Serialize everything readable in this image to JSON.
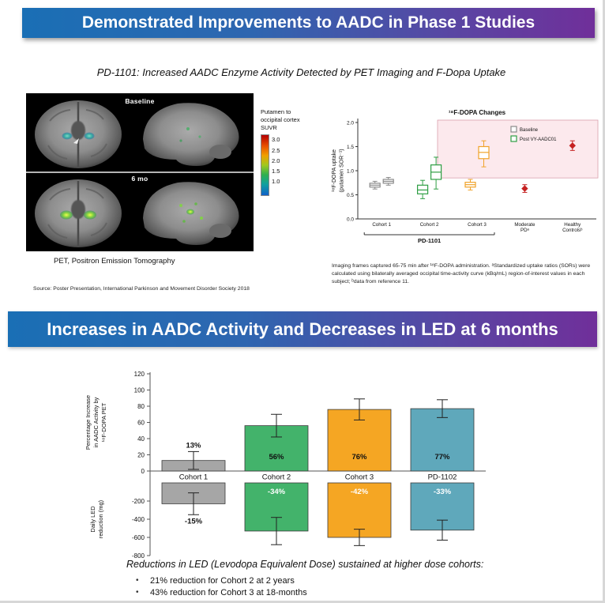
{
  "slide1": {
    "banner": "Demonstrated Improvements to AADC in Phase 1 Studies",
    "subtitle": "PD-1101: Increased AADC Enzyme Activity Detected by PET Imaging and F-Dopa Uptake",
    "pet": {
      "row1_label": "Baseline",
      "row2_label": "6 mo",
      "colorbar": {
        "label": "Putamen to occipital cortex SUVR",
        "ticks": [
          "3.0",
          "2.5",
          "2.0",
          "1.5",
          "1.0"
        ]
      },
      "caption": "PET, Positron Emission Tomography"
    },
    "source": "Source: Poster Presentation, International Parkinson and Movement Disorder Society 2018",
    "footnote": "Imaging frames captured 65-75 min after ¹⁸F-DOPA administration. ᵃStandardized uptake ratios (SORs) were calculated using bilaterally averaged occipital time-activity curve (kBq/mL) region-of-interest values in each subject; ᵇdata from reference 11."
  },
  "slide2": {
    "banner": "Increases in AADC Activity and Decreases in LED at 6 months",
    "summary": "Reductions in LED (Levodopa Equivalent Dose) sustained at higher dose cohorts:",
    "bullets": [
      "21% reduction for Cohort 2 at 2 years",
      "43% reduction for Cohort 3 at 18-months"
    ]
  },
  "chart_data": [
    {
      "type": "boxplot",
      "title": "¹⁸F-DOPA Changes",
      "ylabel": "¹⁸F-DOPA uptake (putamen SOR⁻¹)",
      "ylim": [
        0,
        2.0
      ],
      "yticks": [
        "0.0",
        "0.5",
        "1.0",
        "1.5",
        "2.0"
      ],
      "categories": [
        "Cohort 1",
        "Cohort 2",
        "Cohort 3",
        "Moderate PDᵃ",
        "Healthy Controlsᵇ"
      ],
      "group_bracket": {
        "label": "PD-1101",
        "span": [
          "Cohort 1",
          "Cohort 3"
        ]
      },
      "legend": [
        {
          "label": "Baseline",
          "color": "#8a8a8a"
        },
        {
          "label": "Post VY-AADC01",
          "color": "#2f9e44"
        }
      ],
      "boxes": [
        {
          "category": "Cohort 1",
          "series": "Baseline",
          "whisker_low": 0.62,
          "q1": 0.66,
          "median": 0.7,
          "q3": 0.74,
          "whisker_high": 0.78,
          "color": "#8a8a8a"
        },
        {
          "category": "Cohort 1",
          "series": "Post VY-AADC01",
          "whisker_low": 0.7,
          "q1": 0.74,
          "median": 0.78,
          "q3": 0.82,
          "whisker_high": 0.86,
          "color": "#8a8a8a"
        },
        {
          "category": "Cohort 2",
          "series": "Baseline",
          "whisker_low": 0.42,
          "q1": 0.52,
          "median": 0.6,
          "q3": 0.7,
          "whisker_high": 0.8,
          "color": "#2f9e44"
        },
        {
          "category": "Cohort 2",
          "series": "Post VY-AADC01",
          "whisker_low": 0.62,
          "q1": 0.82,
          "median": 0.97,
          "q3": 1.12,
          "whisker_high": 1.28,
          "color": "#2f9e44"
        },
        {
          "category": "Cohort 3",
          "series": "Baseline",
          "whisker_low": 0.6,
          "q1": 0.66,
          "median": 0.71,
          "q3": 0.76,
          "whisker_high": 0.82,
          "color": "#f0a32a"
        },
        {
          "category": "Cohort 3",
          "series": "Post VY-AADC01",
          "whisker_low": 1.08,
          "q1": 1.25,
          "median": 1.38,
          "q3": 1.5,
          "whisker_high": 1.62,
          "color": "#f0a32a"
        }
      ],
      "points": [
        {
          "category": "Moderate PDᵃ",
          "value": 0.63,
          "error": 0.08,
          "color": "#c62222",
          "marker": "diamond"
        },
        {
          "category": "Healthy Controlsᵇ",
          "value": 1.52,
          "error": 0.1,
          "color": "#c62222",
          "marker": "diamond"
        }
      ],
      "highlight": {
        "x_from": "Cohort 3",
        "y_from": 0.85,
        "y_to": 2.0,
        "fill": "#fce9ed",
        "border": "#d9a0ac"
      }
    },
    {
      "type": "bar",
      "categories": [
        "Cohort 1",
        "Cohort 2",
        "Cohort 3",
        "PD-1102"
      ],
      "bar_colors": [
        "#a6a6a6",
        "#43b36b",
        "#f5a623",
        "#5fa8bb"
      ],
      "panels": [
        {
          "ylabel": "Percentage Increase in AADC Activity by ¹⁸F-DOPA PET",
          "ylim": [
            0,
            120
          ],
          "yticks": [
            0,
            20,
            40,
            60,
            80,
            100,
            120
          ],
          "values": [
            13,
            56,
            76,
            77
          ],
          "labels": [
            "13%",
            "56%",
            "76%",
            "77%"
          ],
          "errors": [
            11,
            14,
            13,
            11
          ]
        },
        {
          "ylabel": "Daily LED reduction (mg)",
          "ylim": [
            -800,
            0
          ],
          "yticks": [
            -200,
            -400,
            -600,
            -800
          ],
          "values": [
            -230,
            -530,
            -600,
            -520
          ],
          "labels": [
            "-15%",
            "-34%",
            "-42%",
            "-33%"
          ],
          "errors": [
            120,
            150,
            90,
            110
          ]
        }
      ]
    }
  ]
}
